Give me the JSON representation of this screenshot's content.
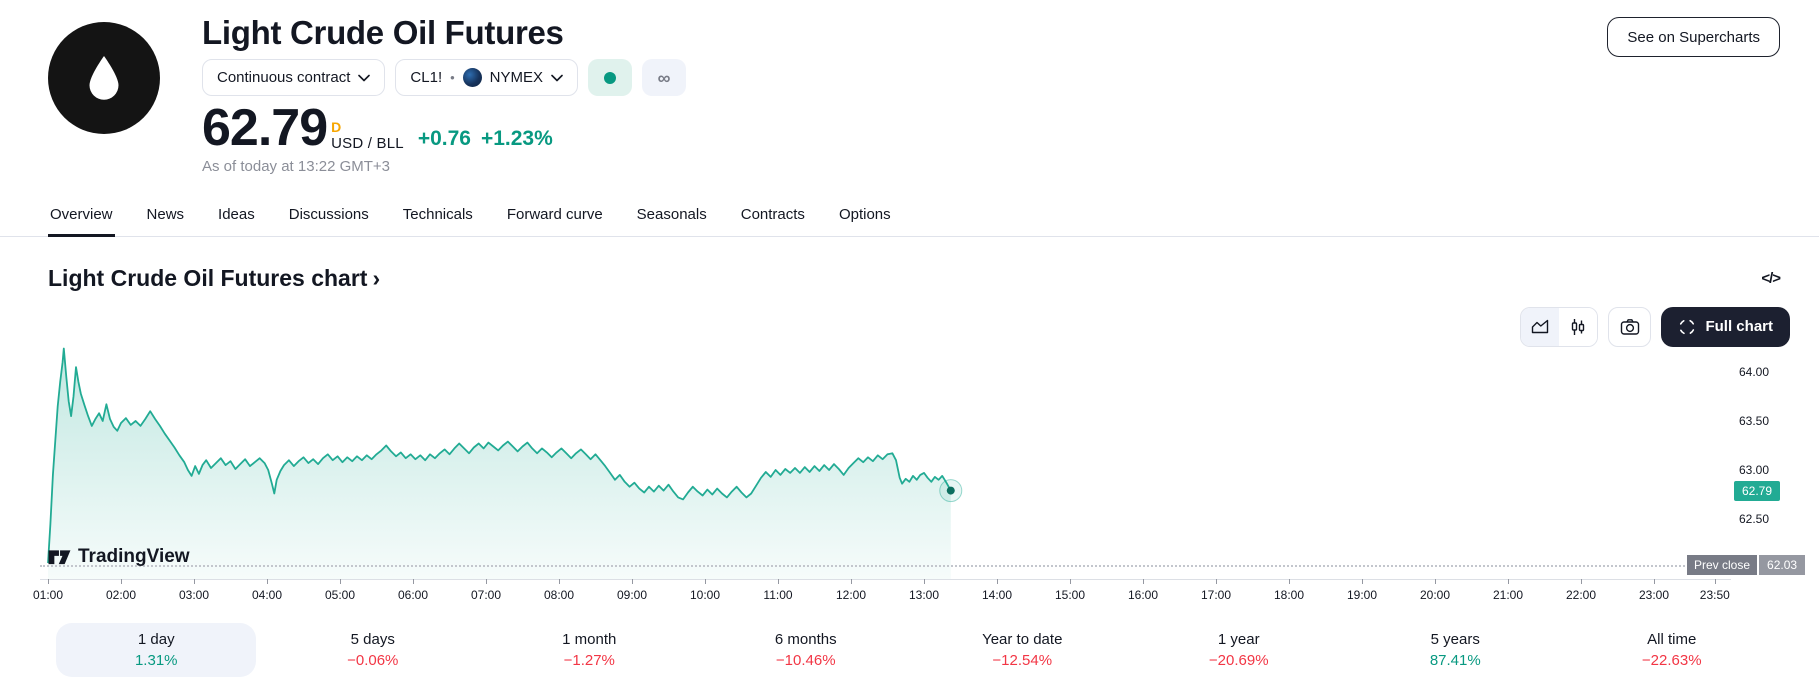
{
  "header": {
    "title": "Light Crude Oil Futures",
    "contract_dropdown": {
      "label": "Continuous contract"
    },
    "symbol_dropdown": {
      "symbol": "CL1!",
      "separator": "•",
      "exchange": "NYMEX"
    },
    "market_status": {
      "open_dot_color": "#089981",
      "infinity": "∞"
    },
    "price": {
      "value": "62.79",
      "flag": "D",
      "unit": "USD / BLL",
      "change_abs": "+0.76",
      "change_pct": "+1.23%",
      "as_of": "As of today at 13:22 GMT+3"
    },
    "supercharts_button": "See on Supercharts"
  },
  "tabs": [
    {
      "label": "Overview",
      "active": true
    },
    {
      "label": "News"
    },
    {
      "label": "Ideas"
    },
    {
      "label": "Discussions"
    },
    {
      "label": "Technicals"
    },
    {
      "label": "Forward curve"
    },
    {
      "label": "Seasonals"
    },
    {
      "label": "Contracts"
    },
    {
      "label": "Options"
    }
  ],
  "chart_section": {
    "heading": "Light Crude Oil Futures chart",
    "heading_chevron": "›",
    "embed_icon": "</>",
    "full_chart_label": "Full chart"
  },
  "chart_data": {
    "type": "area",
    "title": "Light Crude Oil Futures chart",
    "line_color": "#22ab94",
    "grid": false,
    "legend": false,
    "x_axis": {
      "unit": "time of day",
      "labels": [
        {
          "t": 0,
          "label": "01:00"
        },
        {
          "t": 60,
          "label": "02:00"
        },
        {
          "t": 120,
          "label": "03:00"
        },
        {
          "t": 180,
          "label": "04:00"
        },
        {
          "t": 240,
          "label": "05:00"
        },
        {
          "t": 300,
          "label": "06:00"
        },
        {
          "t": 360,
          "label": "07:00"
        },
        {
          "t": 420,
          "label": "08:00"
        },
        {
          "t": 480,
          "label": "09:00"
        },
        {
          "t": 540,
          "label": "10:00"
        },
        {
          "t": 600,
          "label": "11:00"
        },
        {
          "t": 660,
          "label": "12:00"
        },
        {
          "t": 720,
          "label": "13:00"
        },
        {
          "t": 780,
          "label": "14:00"
        },
        {
          "t": 840,
          "label": "15:00"
        },
        {
          "t": 900,
          "label": "16:00"
        },
        {
          "t": 960,
          "label": "17:00"
        },
        {
          "t": 1020,
          "label": "18:00"
        },
        {
          "t": 1080,
          "label": "19:00"
        },
        {
          "t": 1140,
          "label": "20:00"
        },
        {
          "t": 1200,
          "label": "21:00"
        },
        {
          "t": 1260,
          "label": "22:00"
        },
        {
          "t": 1320,
          "label": "23:00"
        },
        {
          "t": 1370,
          "label": "23:50"
        }
      ]
    },
    "y_axis": {
      "ticks": [
        "64.00",
        "63.50",
        "63.00",
        "62.50"
      ],
      "tick_values": [
        64.0,
        63.5,
        63.0,
        62.5
      ],
      "range": [
        62.0,
        64.4
      ]
    },
    "last_price": {
      "value": 62.79,
      "label": "62.79"
    },
    "prev_close": {
      "name": "Prev close",
      "value": 62.03,
      "label": "62.03"
    },
    "watermark": "TradingView",
    "series": [
      [
        0,
        62.05
      ],
      [
        2,
        62.45
      ],
      [
        4,
        62.95
      ],
      [
        6,
        63.3
      ],
      [
        8,
        63.65
      ],
      [
        10,
        63.9
      ],
      [
        12,
        64.1
      ],
      [
        13,
        64.24
      ],
      [
        15,
        63.95
      ],
      [
        17,
        63.7
      ],
      [
        19,
        63.55
      ],
      [
        21,
        63.75
      ],
      [
        23,
        64.05
      ],
      [
        25,
        63.9
      ],
      [
        27,
        63.78
      ],
      [
        30,
        63.66
      ],
      [
        33,
        63.55
      ],
      [
        36,
        63.45
      ],
      [
        39,
        63.52
      ],
      [
        42,
        63.58
      ],
      [
        45,
        63.5
      ],
      [
        48,
        63.67
      ],
      [
        51,
        63.52
      ],
      [
        54,
        63.44
      ],
      [
        57,
        63.4
      ],
      [
        60,
        63.48
      ],
      [
        64,
        63.53
      ],
      [
        68,
        63.46
      ],
      [
        72,
        63.5
      ],
      [
        76,
        63.45
      ],
      [
        80,
        63.52
      ],
      [
        84,
        63.6
      ],
      [
        88,
        63.52
      ],
      [
        92,
        63.45
      ],
      [
        96,
        63.37
      ],
      [
        100,
        63.3
      ],
      [
        104,
        63.23
      ],
      [
        108,
        63.15
      ],
      [
        112,
        63.08
      ],
      [
        115,
        63.0
      ],
      [
        118,
        62.94
      ],
      [
        121,
        63.04
      ],
      [
        124,
        62.96
      ],
      [
        127,
        63.05
      ],
      [
        130,
        63.1
      ],
      [
        134,
        63.02
      ],
      [
        138,
        63.07
      ],
      [
        142,
        63.12
      ],
      [
        146,
        63.05
      ],
      [
        150,
        63.09
      ],
      [
        154,
        63.01
      ],
      [
        158,
        63.06
      ],
      [
        162,
        63.11
      ],
      [
        166,
        63.04
      ],
      [
        170,
        63.08
      ],
      [
        174,
        63.12
      ],
      [
        178,
        63.07
      ],
      [
        181,
        63.0
      ],
      [
        184,
        62.86
      ],
      [
        186,
        62.76
      ],
      [
        188,
        62.9
      ],
      [
        191,
        62.99
      ],
      [
        194,
        63.05
      ],
      [
        198,
        63.1
      ],
      [
        202,
        63.04
      ],
      [
        206,
        63.09
      ],
      [
        210,
        63.13
      ],
      [
        214,
        63.07
      ],
      [
        218,
        63.11
      ],
      [
        222,
        63.06
      ],
      [
        226,
        63.12
      ],
      [
        230,
        63.16
      ],
      [
        234,
        63.1
      ],
      [
        238,
        63.14
      ],
      [
        242,
        63.08
      ],
      [
        246,
        63.13
      ],
      [
        250,
        63.09
      ],
      [
        254,
        63.14
      ],
      [
        258,
        63.1
      ],
      [
        262,
        63.15
      ],
      [
        266,
        63.11
      ],
      [
        270,
        63.16
      ],
      [
        274,
        63.2
      ],
      [
        278,
        63.25
      ],
      [
        282,
        63.19
      ],
      [
        286,
        63.14
      ],
      [
        290,
        63.18
      ],
      [
        294,
        63.12
      ],
      [
        298,
        63.16
      ],
      [
        302,
        63.11
      ],
      [
        306,
        63.15
      ],
      [
        310,
        63.1
      ],
      [
        314,
        63.16
      ],
      [
        318,
        63.12
      ],
      [
        322,
        63.17
      ],
      [
        326,
        63.21
      ],
      [
        330,
        63.16
      ],
      [
        334,
        63.22
      ],
      [
        338,
        63.27
      ],
      [
        342,
        63.22
      ],
      [
        346,
        63.17
      ],
      [
        350,
        63.23
      ],
      [
        354,
        63.27
      ],
      [
        358,
        63.22
      ],
      [
        362,
        63.28
      ],
      [
        366,
        63.24
      ],
      [
        370,
        63.2
      ],
      [
        374,
        63.25
      ],
      [
        378,
        63.29
      ],
      [
        382,
        63.24
      ],
      [
        386,
        63.19
      ],
      [
        390,
        63.24
      ],
      [
        394,
        63.28
      ],
      [
        398,
        63.22
      ],
      [
        402,
        63.17
      ],
      [
        406,
        63.22
      ],
      [
        410,
        63.18
      ],
      [
        414,
        63.13
      ],
      [
        418,
        63.18
      ],
      [
        422,
        63.22
      ],
      [
        426,
        63.17
      ],
      [
        430,
        63.12
      ],
      [
        434,
        63.17
      ],
      [
        438,
        63.21
      ],
      [
        442,
        63.16
      ],
      [
        446,
        63.11
      ],
      [
        450,
        63.16
      ],
      [
        454,
        63.1
      ],
      [
        458,
        63.04
      ],
      [
        462,
        62.97
      ],
      [
        466,
        62.9
      ],
      [
        470,
        62.95
      ],
      [
        474,
        62.88
      ],
      [
        478,
        62.83
      ],
      [
        482,
        62.87
      ],
      [
        486,
        62.81
      ],
      [
        490,
        62.77
      ],
      [
        494,
        62.83
      ],
      [
        498,
        62.78
      ],
      [
        502,
        62.84
      ],
      [
        506,
        62.79
      ],
      [
        510,
        62.85
      ],
      [
        514,
        62.78
      ],
      [
        518,
        62.72
      ],
      [
        522,
        62.7
      ],
      [
        526,
        62.77
      ],
      [
        530,
        62.83
      ],
      [
        534,
        62.78
      ],
      [
        538,
        62.74
      ],
      [
        542,
        62.8
      ],
      [
        546,
        62.75
      ],
      [
        550,
        62.81
      ],
      [
        554,
        62.76
      ],
      [
        558,
        62.72
      ],
      [
        562,
        62.78
      ],
      [
        566,
        62.83
      ],
      [
        570,
        62.77
      ],
      [
        574,
        62.72
      ],
      [
        578,
        62.76
      ],
      [
        582,
        62.84
      ],
      [
        586,
        62.92
      ],
      [
        590,
        62.98
      ],
      [
        594,
        62.93
      ],
      [
        598,
        63.0
      ],
      [
        602,
        62.95
      ],
      [
        606,
        63.01
      ],
      [
        610,
        62.97
      ],
      [
        614,
        63.02
      ],
      [
        618,
        62.97
      ],
      [
        622,
        63.03
      ],
      [
        626,
        62.98
      ],
      [
        630,
        63.04
      ],
      [
        634,
        62.99
      ],
      [
        638,
        63.05
      ],
      [
        642,
        63.0
      ],
      [
        646,
        63.06
      ],
      [
        650,
        63.01
      ],
      [
        654,
        62.95
      ],
      [
        658,
        63.02
      ],
      [
        662,
        63.07
      ],
      [
        666,
        63.12
      ],
      [
        670,
        63.08
      ],
      [
        674,
        63.13
      ],
      [
        678,
        63.09
      ],
      [
        682,
        63.15
      ],
      [
        686,
        63.11
      ],
      [
        690,
        63.16
      ],
      [
        694,
        63.17
      ],
      [
        697,
        63.1
      ],
      [
        700,
        62.92
      ],
      [
        702,
        62.86
      ],
      [
        705,
        62.91
      ],
      [
        708,
        62.88
      ],
      [
        711,
        62.94
      ],
      [
        714,
        62.9
      ],
      [
        717,
        62.95
      ],
      [
        720,
        62.97
      ],
      [
        723,
        62.92
      ],
      [
        726,
        62.88
      ],
      [
        729,
        62.93
      ],
      [
        732,
        62.9
      ],
      [
        735,
        62.94
      ],
      [
        738,
        62.88
      ],
      [
        742,
        62.79
      ]
    ]
  },
  "periods": [
    {
      "label": "1 day",
      "value": "1.31%",
      "direction": "up",
      "active": true
    },
    {
      "label": "5 days",
      "value": "−0.06%",
      "direction": "down"
    },
    {
      "label": "1 month",
      "value": "−1.27%",
      "direction": "down"
    },
    {
      "label": "6 months",
      "value": "−10.46%",
      "direction": "down"
    },
    {
      "label": "Year to date",
      "value": "−12.54%",
      "direction": "down"
    },
    {
      "label": "1 year",
      "value": "−20.69%",
      "direction": "down"
    },
    {
      "label": "5 years",
      "value": "87.41%",
      "direction": "up"
    },
    {
      "label": "All time",
      "value": "−22.63%",
      "direction": "down"
    }
  ],
  "colors": {
    "up": "#089981",
    "down": "#f23645",
    "line_teal": "#22ab94",
    "text": "#131722",
    "muted": "#787b86",
    "border": "#e0e3eb",
    "flag_orange": "#f7a600"
  }
}
